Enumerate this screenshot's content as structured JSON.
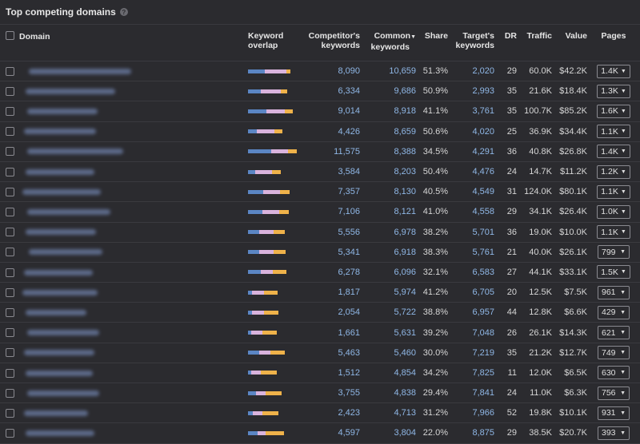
{
  "header": {
    "title": "Top competing domains",
    "help_icon": "question-circle-icon"
  },
  "columns": {
    "domain": "Domain",
    "overlap_1": "Keyword",
    "overlap_2": "overlap",
    "comp_kw_1": "Competitor's",
    "comp_kw_2": "keywords",
    "common_1": "Common",
    "common_2": "keywords",
    "share": "Share",
    "target_1": "Target's",
    "target_2": "keywords",
    "dr": "DR",
    "traffic": "Traffic",
    "value": "Value",
    "pages": "Pages"
  },
  "colors": {
    "overlap_competitor": "#5b86c4",
    "overlap_common": "#d9b3dd",
    "overlap_target": "#efb24a",
    "link": "#8fb7e6"
  },
  "rows": [
    {
      "comp": "8,090",
      "common": "10,659",
      "share": "51.3%",
      "target": "2,020",
      "dr": "29",
      "traffic": "60.0K",
      "value": "$42.2K",
      "pages": "1.4K"
    },
    {
      "comp": "6,334",
      "common": "9,686",
      "share": "50.9%",
      "target": "2,993",
      "dr": "35",
      "traffic": "21.6K",
      "value": "$18.4K",
      "pages": "1.3K"
    },
    {
      "comp": "9,014",
      "common": "8,918",
      "share": "41.1%",
      "target": "3,761",
      "dr": "35",
      "traffic": "100.7K",
      "value": "$85.2K",
      "pages": "1.6K"
    },
    {
      "comp": "4,426",
      "common": "8,659",
      "share": "50.6%",
      "target": "4,020",
      "dr": "25",
      "traffic": "36.9K",
      "value": "$34.4K",
      "pages": "1.1K"
    },
    {
      "comp": "11,575",
      "common": "8,388",
      "share": "34.5%",
      "target": "4,291",
      "dr": "36",
      "traffic": "40.8K",
      "value": "$26.8K",
      "pages": "1.4K"
    },
    {
      "comp": "3,584",
      "common": "8,203",
      "share": "50.4%",
      "target": "4,476",
      "dr": "24",
      "traffic": "14.7K",
      "value": "$11.2K",
      "pages": "1.2K"
    },
    {
      "comp": "7,357",
      "common": "8,130",
      "share": "40.5%",
      "target": "4,549",
      "dr": "31",
      "traffic": "124.0K",
      "value": "$80.1K",
      "pages": "1.1K"
    },
    {
      "comp": "7,106",
      "common": "8,121",
      "share": "41.0%",
      "target": "4,558",
      "dr": "29",
      "traffic": "34.1K",
      "value": "$26.4K",
      "pages": "1.0K"
    },
    {
      "comp": "5,556",
      "common": "6,978",
      "share": "38.2%",
      "target": "5,701",
      "dr": "36",
      "traffic": "19.0K",
      "value": "$10.0K",
      "pages": "1.1K"
    },
    {
      "comp": "5,341",
      "common": "6,918",
      "share": "38.3%",
      "target": "5,761",
      "dr": "21",
      "traffic": "40.0K",
      "value": "$26.1K",
      "pages": "799"
    },
    {
      "comp": "6,278",
      "common": "6,096",
      "share": "32.1%",
      "target": "6,583",
      "dr": "27",
      "traffic": "44.1K",
      "value": "$33.1K",
      "pages": "1.5K"
    },
    {
      "comp": "1,817",
      "common": "5,974",
      "share": "41.2%",
      "target": "6,705",
      "dr": "20",
      "traffic": "12.5K",
      "value": "$7.5K",
      "pages": "961"
    },
    {
      "comp": "2,054",
      "common": "5,722",
      "share": "38.8%",
      "target": "6,957",
      "dr": "44",
      "traffic": "12.8K",
      "value": "$6.6K",
      "pages": "429"
    },
    {
      "comp": "1,661",
      "common": "5,631",
      "share": "39.2%",
      "target": "7,048",
      "dr": "26",
      "traffic": "26.1K",
      "value": "$14.3K",
      "pages": "621"
    },
    {
      "comp": "5,463",
      "common": "5,460",
      "share": "30.0%",
      "target": "7,219",
      "dr": "35",
      "traffic": "21.2K",
      "value": "$12.7K",
      "pages": "749"
    },
    {
      "comp": "1,512",
      "common": "4,854",
      "share": "34.2%",
      "target": "7,825",
      "dr": "11",
      "traffic": "12.0K",
      "value": "$6.5K",
      "pages": "630"
    },
    {
      "comp": "3,755",
      "common": "4,838",
      "share": "29.4%",
      "target": "7,841",
      "dr": "24",
      "traffic": "11.0K",
      "value": "$6.3K",
      "pages": "756"
    },
    {
      "comp": "2,423",
      "common": "4,713",
      "share": "31.2%",
      "target": "7,966",
      "dr": "52",
      "traffic": "19.8K",
      "value": "$10.1K",
      "pages": "931"
    },
    {
      "comp": "4,597",
      "common": "3,804",
      "share": "22.0%",
      "target": "8,875",
      "dr": "29",
      "traffic": "38.5K",
      "value": "$20.7K",
      "pages": "393"
    }
  ]
}
